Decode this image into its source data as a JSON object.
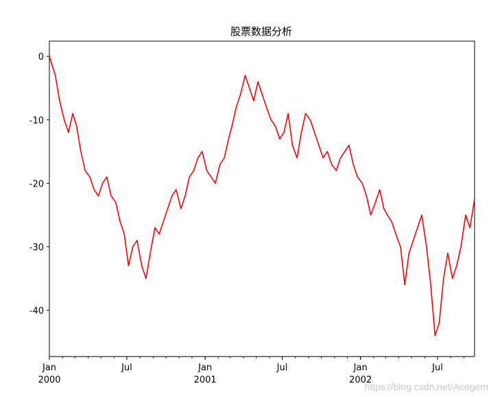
{
  "chart_data": {
    "type": "line",
    "title": "股票数据分析",
    "xlabel": "",
    "ylabel": "",
    "x_range": [
      "2000-01-01",
      "2002-09-26"
    ],
    "ylim": [
      -47.3,
      2.4
    ],
    "grid": false,
    "y_ticks": [
      0,
      -10,
      -20,
      -30,
      -40
    ],
    "y_tick_labels": [
      "0",
      "-10",
      "-20",
      "-30",
      "-40"
    ],
    "x_ticks": [
      {
        "date": "2000-01-01",
        "label": "Jan",
        "sublabel": "2000"
      },
      {
        "date": "2000-07-01",
        "label": "Jul",
        "sublabel": ""
      },
      {
        "date": "2001-01-01",
        "label": "Jan",
        "sublabel": "2001"
      },
      {
        "date": "2001-07-01",
        "label": "Jul",
        "sublabel": ""
      },
      {
        "date": "2002-01-01",
        "label": "Jan",
        "sublabel": "2002"
      },
      {
        "date": "2002-07-01",
        "label": "Jul",
        "sublabel": ""
      }
    ],
    "series": [
      {
        "color": "#ff0000",
        "x": [
          "2000-01-01",
          "2000-01-08",
          "2000-01-15",
          "2000-01-25",
          "2000-02-05",
          "2000-02-15",
          "2000-02-25",
          "2000-03-05",
          "2000-03-15",
          "2000-03-25",
          "2000-04-05",
          "2000-04-15",
          "2000-04-25",
          "2000-05-05",
          "2000-05-15",
          "2000-05-25",
          "2000-06-05",
          "2000-06-15",
          "2000-06-25",
          "2000-07-05",
          "2000-07-15",
          "2000-07-25",
          "2000-08-05",
          "2000-08-15",
          "2000-08-25",
          "2000-09-05",
          "2000-09-15",
          "2000-09-25",
          "2000-10-05",
          "2000-10-15",
          "2000-10-25",
          "2000-11-05",
          "2000-11-15",
          "2000-11-25",
          "2000-12-05",
          "2000-12-15",
          "2000-12-25",
          "2001-01-05",
          "2001-01-15",
          "2001-01-25",
          "2001-02-05",
          "2001-02-15",
          "2001-02-25",
          "2001-03-05",
          "2001-03-15",
          "2001-03-25",
          "2001-04-05",
          "2001-04-15",
          "2001-04-25",
          "2001-05-05",
          "2001-05-15",
          "2001-05-25",
          "2001-06-05",
          "2001-06-15",
          "2001-06-25",
          "2001-07-05",
          "2001-07-15",
          "2001-07-25",
          "2001-08-05",
          "2001-08-15",
          "2001-08-25",
          "2001-09-05",
          "2001-09-15",
          "2001-09-25",
          "2001-10-05",
          "2001-10-15",
          "2001-10-25",
          "2001-11-05",
          "2001-11-15",
          "2001-11-25",
          "2001-12-05",
          "2001-12-15",
          "2001-12-25",
          "2002-01-05",
          "2002-01-15",
          "2002-01-25",
          "2002-02-05",
          "2002-02-15",
          "2002-02-25",
          "2002-03-05",
          "2002-03-15",
          "2002-03-25",
          "2002-04-05",
          "2002-04-15",
          "2002-04-25",
          "2002-05-05",
          "2002-05-15",
          "2002-05-25",
          "2002-06-05",
          "2002-06-15",
          "2002-06-25",
          "2002-07-05",
          "2002-07-15",
          "2002-07-25",
          "2002-08-05",
          "2002-08-15",
          "2002-08-25",
          "2002-09-05",
          "2002-09-15",
          "2002-09-26"
        ],
        "y": [
          0,
          -1.5,
          -3,
          -7,
          -10,
          -12,
          -9,
          -11,
          -15,
          -18,
          -19,
          -21,
          -22,
          -20,
          -19,
          -22,
          -23,
          -26,
          -28,
          -33,
          -30,
          -29,
          -33,
          -35,
          -31,
          -27,
          -28,
          -26,
          -24,
          -22,
          -21,
          -24,
          -22,
          -19,
          -18,
          -16,
          -15,
          -18,
          -19,
          -20,
          -17,
          -16,
          -13,
          -11,
          -8,
          -6,
          -3,
          -5,
          -7,
          -4,
          -6,
          -8,
          -10,
          -11,
          -13,
          -12,
          -9,
          -14,
          -16,
          -12,
          -9,
          -10,
          -12,
          -14,
          -16,
          -15,
          -17,
          -18,
          -16,
          -15,
          -14,
          -17,
          -19,
          -20,
          -22,
          -25,
          -23,
          -21,
          -24,
          -25,
          -26,
          -28,
          -30,
          -36,
          -31,
          -29,
          -27,
          -25,
          -30,
          -36,
          -44,
          -42,
          -35,
          -31,
          -35,
          -33,
          -30,
          -25,
          -27,
          -22.5
        ]
      }
    ]
  },
  "watermark": "https://blog.csdn.net/Acegem"
}
